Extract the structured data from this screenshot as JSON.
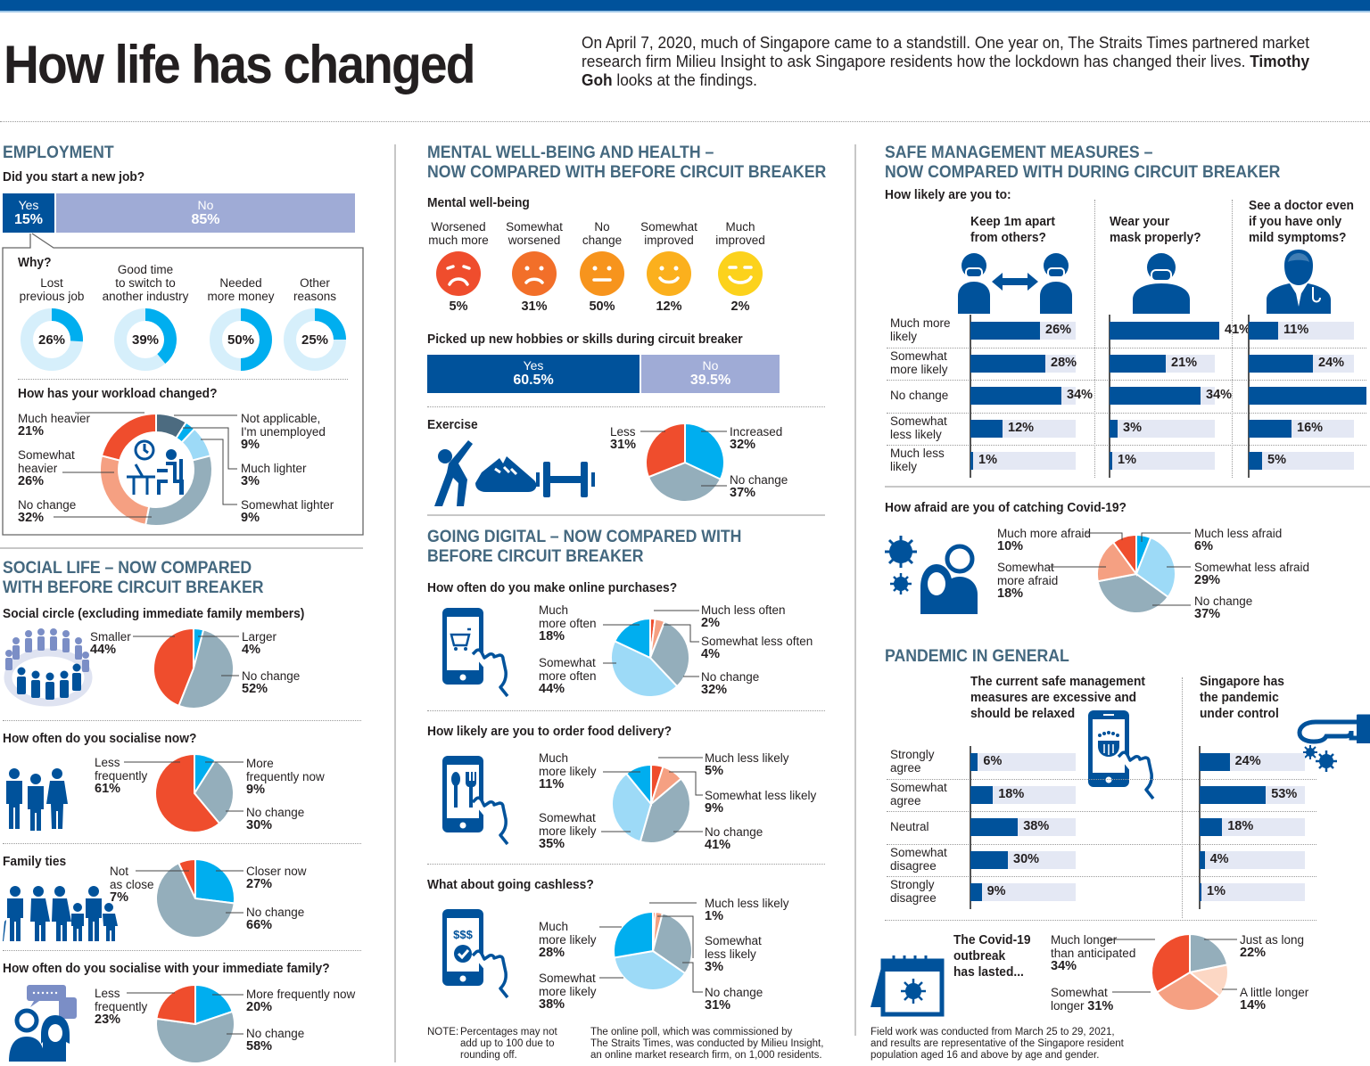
{
  "header": {
    "title": "How life has changed",
    "intro_before": "On April 7, 2020, much of Singapore came to a standstill. One year on, The Straits Times partnered market research firm Milieu Insight to ask Singapore residents how the lockdown has changed their lives. ",
    "intro_author": "Timothy Goh",
    "intro_after": " looks at the findings.",
    "brand_color": "#00529b"
  },
  "colors": {
    "dark_blue": "#00529b",
    "light_purple": "#9fabd6",
    "cyan": "#00aeef",
    "light_cyan": "#9ddaf7",
    "pale_cyan": "#d6effb",
    "red": "#ef4d2d",
    "salmon": "#f5a082",
    "peach": "#fcd7c4",
    "grey_blue": "#94aebb",
    "slate": "#4c6b80",
    "track": "#e4e8f4"
  },
  "employment": {
    "heading": "EMPLOYMENT",
    "new_job_q": "Did you start a new job?",
    "yes_label": "Yes",
    "yes_value": "15%",
    "no_label": "No",
    "no_value": "85%",
    "why_q": "Why?",
    "workload_q": "How has your workload changed?"
  },
  "social": {
    "heading_1": "SOCIAL LIFE – NOW COMPARED",
    "heading_2": "WITH BEFORE CIRCUIT BREAKER",
    "circle_q": "Social circle (excluding immediate family members)",
    "socialise_q": "How often do you socialise now?",
    "family_q": "Family ties",
    "immediate_q": "How often do you socialise with your immediate family?"
  },
  "mental": {
    "heading_1": "MENTAL WELL-BEING AND HEALTH –",
    "heading_2": "NOW COMPARED WITH BEFORE CIRCUIT BREAKER",
    "wellbeing_q": "Mental well-being",
    "faces": [
      {
        "l1": "Worsened",
        "l2": "much more",
        "value": "5%",
        "color": "#ef4d2d"
      },
      {
        "l1": "Somewhat",
        "l2": "worsened",
        "value": "31%",
        "color": "#f26f29"
      },
      {
        "l1": "No",
        "l2": "change",
        "value": "50%",
        "color": "#f7941d"
      },
      {
        "l1": "Somewhat",
        "l2": "improved",
        "value": "12%",
        "color": "#fbb01d"
      },
      {
        "l1": "Much",
        "l2": "improved",
        "value": "2%",
        "color": "#fcd21c"
      }
    ],
    "hobbies_q": "Picked up new hobbies or skills during circuit breaker",
    "hobbies_yes_label": "Yes",
    "hobbies_yes_value": "60.5%",
    "hobbies_no_label": "No",
    "hobbies_no_value": "39.5%",
    "exercise_q": "Exercise"
  },
  "digital": {
    "heading_1": "GOING DIGITAL – NOW COMPARED WITH",
    "heading_2": "BEFORE CIRCUIT BREAKER",
    "online_q": "How often do you make online purchases?",
    "food_q": "How likely are you to order food delivery?",
    "cashless_q": "What about going cashless?"
  },
  "safe": {
    "heading_1": "SAFE MANAGEMENT MEASURES –",
    "heading_2": "NOW COMPARED WITH DURING CIRCUIT BREAKER",
    "likely_q": "How likely are you to:",
    "col_titles": [
      [
        "Keep 1m apart",
        "from others?"
      ],
      [
        "Wear your",
        "mask properly?"
      ],
      [
        "See a doctor even",
        "if you have only",
        "mild symptoms?"
      ]
    ],
    "rows": [
      [
        "Much more",
        "likely"
      ],
      [
        "Somewhat",
        "more likely"
      ],
      [
        "No change"
      ],
      [
        "Somewhat",
        "less likely"
      ],
      [
        "Much less",
        "likely"
      ]
    ],
    "afraid_q": "How afraid are you of catching Covid-19?"
  },
  "pandemic": {
    "heading": "PANDEMIC IN GENERAL",
    "col_titles": [
      [
        "The current safe management",
        "measures are excessive and",
        "should be relaxed"
      ],
      [
        "Singapore has",
        "the pandemic",
        "under control"
      ]
    ],
    "rows": [
      [
        "Strongly",
        "agree"
      ],
      [
        "Somewhat",
        "agree"
      ],
      [
        "Neutral"
      ],
      [
        "Somewhat",
        "disagree"
      ],
      [
        "Strongly",
        "disagree"
      ]
    ],
    "lasted_q": [
      "The Covid-19",
      "outbreak",
      "has lasted..."
    ]
  },
  "notes": {
    "note_prefix": "NOTE:",
    "note_text": [
      "Percentages may not",
      "add up to 100 due to",
      "rounding off."
    ],
    "poll": [
      "The online poll, which was commissioned by",
      "The Straits Times, was conducted by Milieu Insight,",
      "an online market research firm, on 1,000 residents."
    ],
    "field": [
      "Field work was conducted from March 25 to 29, 2021,",
      "and results are representative of the Singapore resident",
      "population aged 16 and above by age and gender."
    ]
  },
  "chart_data": [
    {
      "id": "new_job",
      "type": "bar",
      "title": "Did you start a new job?",
      "categories": [
        "Yes",
        "No"
      ],
      "values": [
        15,
        85
      ],
      "stacked": true
    },
    {
      "id": "why",
      "type": "pie",
      "title": "Why?",
      "donut": true,
      "categories": [
        "Lost previous job",
        "Good time to switch to another industry",
        "Needed more money",
        "Other reasons"
      ],
      "values": [
        26,
        39,
        50,
        25
      ]
    },
    {
      "id": "workload",
      "type": "pie",
      "donut": true,
      "title": "How has your workload changed?",
      "categories": [
        "Not applicable, I'm unemployed",
        "Much lighter",
        "Somewhat lighter",
        "No change",
        "Somewhat heavier",
        "Much heavier"
      ],
      "values": [
        9,
        3,
        9,
        32,
        26,
        21
      ]
    },
    {
      "id": "social_circle",
      "type": "pie",
      "title": "Social circle (excluding immediate family members)",
      "categories": [
        "Larger",
        "No change",
        "Smaller"
      ],
      "values": [
        4,
        52,
        44
      ]
    },
    {
      "id": "socialise_now",
      "type": "pie",
      "title": "How often do you socialise now?",
      "categories": [
        "More frequently now",
        "No change",
        "Less frequently"
      ],
      "values": [
        9,
        30,
        61
      ]
    },
    {
      "id": "family_ties",
      "type": "pie",
      "title": "Family ties",
      "categories": [
        "Closer now",
        "No change",
        "Not as close"
      ],
      "values": [
        27,
        66,
        7
      ]
    },
    {
      "id": "immediate_family",
      "type": "pie",
      "title": "How often do you socialise with your immediate family?",
      "categories": [
        "More frequently now",
        "No change",
        "Less frequently"
      ],
      "values": [
        20,
        58,
        23
      ]
    },
    {
      "id": "mental_wellbeing",
      "type": "bar",
      "title": "Mental well-being",
      "categories": [
        "Worsened much more",
        "Somewhat worsened",
        "No change",
        "Somewhat improved",
        "Much improved"
      ],
      "values": [
        5,
        31,
        50,
        12,
        2
      ]
    },
    {
      "id": "hobbies",
      "type": "bar",
      "stacked": true,
      "title": "Picked up new hobbies or skills during circuit breaker",
      "categories": [
        "Yes",
        "No"
      ],
      "values": [
        60.5,
        39.5
      ]
    },
    {
      "id": "exercise",
      "type": "pie",
      "title": "Exercise",
      "categories": [
        "Increased",
        "No change",
        "Less"
      ],
      "values": [
        32,
        37,
        31
      ]
    },
    {
      "id": "online_purchases",
      "type": "pie",
      "title": "How often do you make online purchases?",
      "categories": [
        "Much less often",
        "Somewhat less often",
        "No change",
        "Somewhat more often",
        "Much more often"
      ],
      "values": [
        2,
        4,
        32,
        44,
        18
      ]
    },
    {
      "id": "food_delivery",
      "type": "pie",
      "title": "How likely are you to order food delivery?",
      "categories": [
        "Much less likely",
        "Somewhat less likely",
        "No change",
        "Somewhat more likely",
        "Much more likely"
      ],
      "values": [
        5,
        9,
        41,
        35,
        11
      ]
    },
    {
      "id": "cashless",
      "type": "pie",
      "title": "What about going cashless?",
      "categories": [
        "Much less likely",
        "Somewhat less likely",
        "No change",
        "Somewhat more likely",
        "Much more likely"
      ],
      "values": [
        1,
        3,
        31,
        38,
        28
      ]
    },
    {
      "id": "safe_measures",
      "type": "bar",
      "orientation": "horizontal",
      "title": "How likely are you to:",
      "categories": [
        "Much more likely",
        "Somewhat more likely",
        "No change",
        "Somewhat less likely",
        "Much less likely"
      ],
      "series": [
        {
          "name": "Keep 1m apart from others?",
          "values": [
            26,
            28,
            34,
            12,
            1
          ]
        },
        {
          "name": "Wear your mask properly?",
          "values": [
            41,
            21,
            34,
            3,
            1
          ]
        },
        {
          "name": "See a doctor even if you have only mild symptoms?",
          "values": [
            11,
            24,
            44,
            16,
            5
          ]
        }
      ],
      "xlim": [
        0,
        100
      ]
    },
    {
      "id": "afraid",
      "type": "pie",
      "title": "How afraid are you of catching Covid-19?",
      "categories": [
        "Much less afraid",
        "Somewhat less afraid",
        "No change",
        "Somewhat more afraid",
        "Much more afraid"
      ],
      "values": [
        6,
        29,
        37,
        18,
        10
      ]
    },
    {
      "id": "pandemic_general",
      "type": "bar",
      "orientation": "horizontal",
      "title": "Pandemic in general",
      "categories": [
        "Strongly agree",
        "Somewhat agree",
        "Neutral",
        "Somewhat disagree",
        "Strongly disagree"
      ],
      "series": [
        {
          "name": "The current safe management measures are excessive and should be relaxed",
          "values": [
            6,
            18,
            38,
            30,
            9
          ]
        },
        {
          "name": "Singapore has the pandemic under control",
          "values": [
            24,
            53,
            18,
            4,
            1
          ]
        }
      ],
      "xlim": [
        0,
        100
      ]
    },
    {
      "id": "outbreak_lasted",
      "type": "pie",
      "title": "The Covid-19 outbreak has lasted...",
      "categories": [
        "Just as long",
        "A little longer",
        "Somewhat longer",
        "Much longer than anticipated"
      ],
      "values": [
        22,
        14,
        31,
        34
      ]
    }
  ]
}
